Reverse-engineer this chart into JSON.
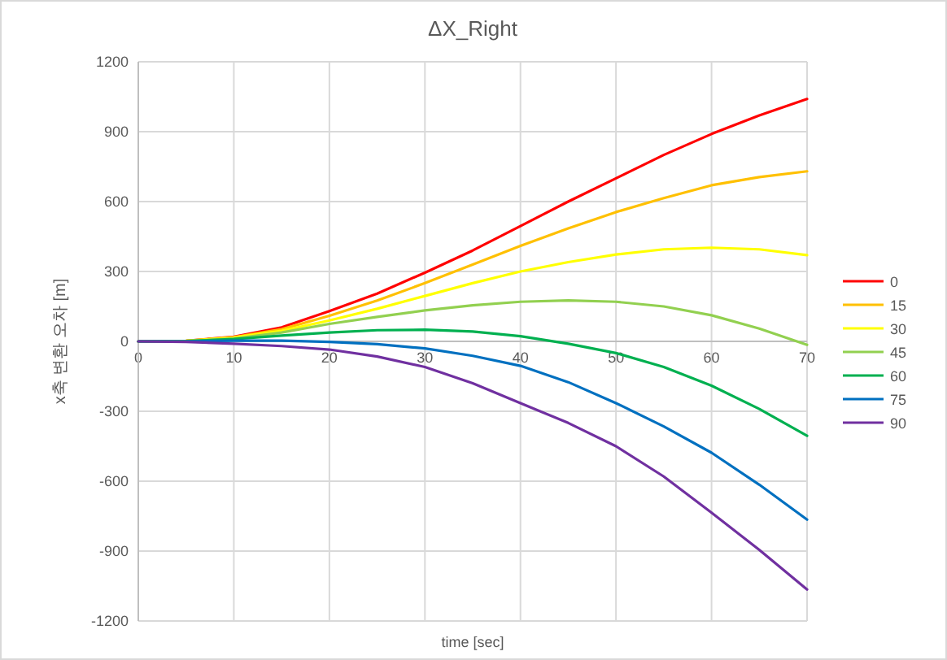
{
  "chart_data": {
    "type": "line",
    "title": "ΔX_Right",
    "xlabel": "time [sec]",
    "ylabel": "x축 변환 오차 [m]",
    "x": [
      0,
      5,
      10,
      15,
      20,
      25,
      30,
      35,
      40,
      45,
      50,
      55,
      60,
      65,
      70
    ],
    "series": [
      {
        "name": "0",
        "color": "#ff0000",
        "values": [
          0,
          2,
          20,
          60,
          130,
          205,
          295,
          390,
          495,
          600,
          700,
          800,
          890,
          970,
          1040
        ]
      },
      {
        "name": "15",
        "color": "#ffc000",
        "values": [
          0,
          2,
          18,
          52,
          110,
          175,
          250,
          330,
          410,
          485,
          555,
          615,
          670,
          705,
          730
        ]
      },
      {
        "name": "30",
        "color": "#ffff00",
        "values": [
          0,
          2,
          16,
          45,
          90,
          140,
          195,
          250,
          300,
          340,
          373,
          395,
          402,
          395,
          370
        ]
      },
      {
        "name": "45",
        "color": "#92d050",
        "values": [
          0,
          1,
          12,
          38,
          75,
          105,
          133,
          155,
          170,
          176,
          170,
          150,
          112,
          55,
          -15
        ]
      },
      {
        "name": "60",
        "color": "#00b050",
        "values": [
          0,
          1,
          10,
          25,
          38,
          48,
          50,
          42,
          22,
          -10,
          -50,
          -110,
          -190,
          -290,
          -405
        ]
      },
      {
        "name": "75",
        "color": "#0070c0",
        "values": [
          0,
          0,
          3,
          3,
          -2,
          -12,
          -30,
          -62,
          -105,
          -175,
          -265,
          -365,
          -478,
          -615,
          -765
        ]
      },
      {
        "name": "90",
        "color": "#7030a0",
        "values": [
          0,
          -2,
          -10,
          -20,
          -35,
          -65,
          -110,
          -180,
          -265,
          -350,
          -450,
          -580,
          -735,
          -895,
          -1065
        ]
      }
    ],
    "xlim": [
      0,
      70
    ],
    "xticks": [
      0,
      10,
      20,
      30,
      40,
      50,
      60,
      70
    ],
    "ylim": [
      -1200,
      1200
    ],
    "yticks": [
      -1200,
      -900,
      -600,
      -300,
      0,
      300,
      600,
      900,
      1200
    ],
    "grid": true,
    "legend": "right",
    "marker": "none",
    "line_style": "solid"
  }
}
